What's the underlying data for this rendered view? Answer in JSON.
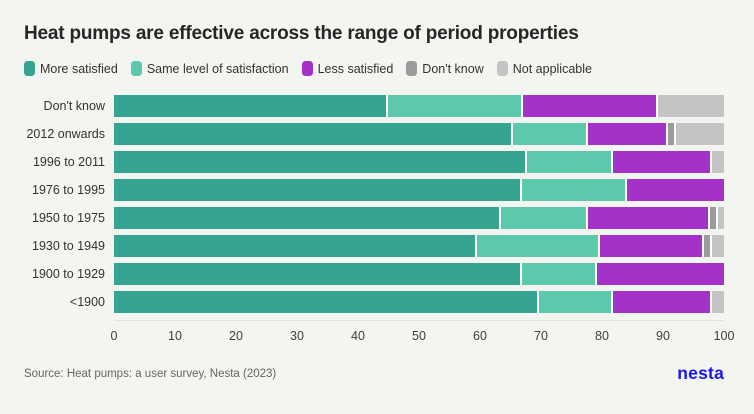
{
  "title": "Heat pumps are effective across the range of period properties",
  "legend": [
    {
      "label": "More satisfied",
      "color": "#36a391"
    },
    {
      "label": "Same level of satisfaction",
      "color": "#5cc8ac"
    },
    {
      "label": "Less satisfied",
      "color": "#a532c8"
    },
    {
      "label": "Don't know",
      "color": "#9b9b9b"
    },
    {
      "label": "Not applicable",
      "color": "#c4c4c4"
    }
  ],
  "chart_data": {
    "type": "bar",
    "orientation": "horizontal",
    "stacked": true,
    "title": "Heat pumps are effective across the range of period properties",
    "categories": [
      "Don't know",
      "2012 onwards",
      "1996 to 2011",
      "1976 to 1995",
      "1950 to 1975",
      "1930 to 1949",
      "1900 to 1929",
      "<1900"
    ],
    "series": [
      {
        "name": "More satisfied",
        "color": "#36a391",
        "values": [
          45,
          66,
          68,
          67,
          64,
          60,
          67,
          70
        ]
      },
      {
        "name": "Same level of satisfaction",
        "color": "#5cc8ac",
        "values": [
          22,
          12,
          14,
          17,
          14,
          20,
          12,
          12
        ]
      },
      {
        "name": "Less satisfied",
        "color": "#a532c8",
        "values": [
          22,
          13,
          16,
          16,
          20,
          17,
          21,
          16
        ]
      },
      {
        "name": "Don't know",
        "color": "#9b9b9b",
        "values": [
          0,
          1,
          0,
          0,
          1,
          1,
          0,
          0
        ]
      },
      {
        "name": "Not applicable",
        "color": "#c4c4c4",
        "values": [
          11,
          8,
          2,
          0,
          1,
          2,
          0,
          2
        ]
      }
    ],
    "xlabel": "",
    "ylabel": "",
    "xlim": [
      0,
      100
    ],
    "x_ticks": [
      0,
      10,
      20,
      30,
      40,
      50,
      60,
      70,
      80,
      90,
      100
    ],
    "legend_position": "top",
    "grid": false
  },
  "footer": {
    "source": "Source: Heat pumps: a user survey, Nesta (2023)",
    "logo": "nesta"
  },
  "colors": {
    "background": "#f3f5f1",
    "title_text": "#262626",
    "axis_text": "#3f3f3f",
    "source_text": "#666666",
    "logo_blue": "#1a16f0",
    "axis_line": "#e1e4e0",
    "separator": "#fdfefd"
  }
}
